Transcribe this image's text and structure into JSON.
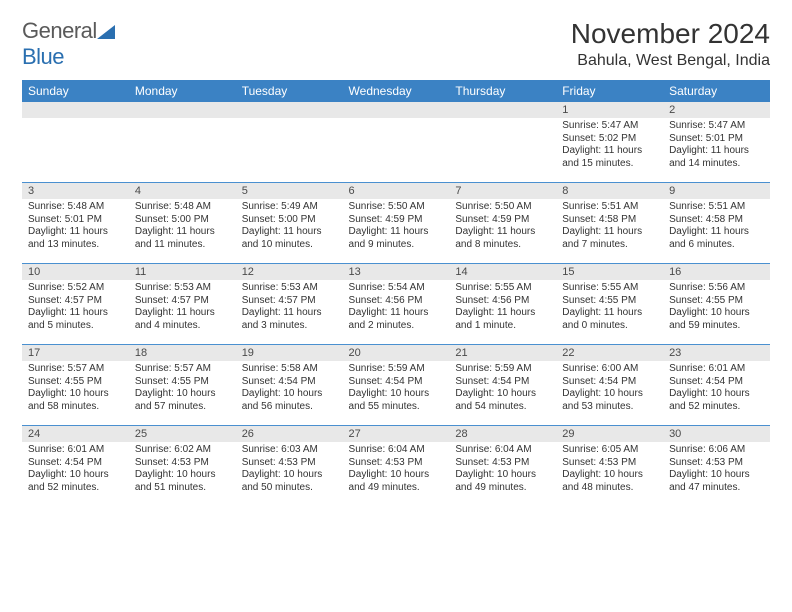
{
  "logo": {
    "word1": "General",
    "word2": "Blue"
  },
  "title": "November 2024",
  "location": "Bahula, West Bengal, India",
  "colors": {
    "header_bg": "#3b82c4",
    "header_text": "#ffffff",
    "divider": "#4a90d0",
    "daynum_bg": "#e8e8e8",
    "logo_gray": "#5a5a5a",
    "logo_blue": "#2a6fb0"
  },
  "weekdays": [
    "Sunday",
    "Monday",
    "Tuesday",
    "Wednesday",
    "Thursday",
    "Friday",
    "Saturday"
  ],
  "weeks": [
    [
      null,
      null,
      null,
      null,
      null,
      {
        "n": "1",
        "sr": "Sunrise: 5:47 AM",
        "ss": "Sunset: 5:02 PM",
        "d1": "Daylight: 11 hours",
        "d2": "and 15 minutes."
      },
      {
        "n": "2",
        "sr": "Sunrise: 5:47 AM",
        "ss": "Sunset: 5:01 PM",
        "d1": "Daylight: 11 hours",
        "d2": "and 14 minutes."
      }
    ],
    [
      {
        "n": "3",
        "sr": "Sunrise: 5:48 AM",
        "ss": "Sunset: 5:01 PM",
        "d1": "Daylight: 11 hours",
        "d2": "and 13 minutes."
      },
      {
        "n": "4",
        "sr": "Sunrise: 5:48 AM",
        "ss": "Sunset: 5:00 PM",
        "d1": "Daylight: 11 hours",
        "d2": "and 11 minutes."
      },
      {
        "n": "5",
        "sr": "Sunrise: 5:49 AM",
        "ss": "Sunset: 5:00 PM",
        "d1": "Daylight: 11 hours",
        "d2": "and 10 minutes."
      },
      {
        "n": "6",
        "sr": "Sunrise: 5:50 AM",
        "ss": "Sunset: 4:59 PM",
        "d1": "Daylight: 11 hours",
        "d2": "and 9 minutes."
      },
      {
        "n": "7",
        "sr": "Sunrise: 5:50 AM",
        "ss": "Sunset: 4:59 PM",
        "d1": "Daylight: 11 hours",
        "d2": "and 8 minutes."
      },
      {
        "n": "8",
        "sr": "Sunrise: 5:51 AM",
        "ss": "Sunset: 4:58 PM",
        "d1": "Daylight: 11 hours",
        "d2": "and 7 minutes."
      },
      {
        "n": "9",
        "sr": "Sunrise: 5:51 AM",
        "ss": "Sunset: 4:58 PM",
        "d1": "Daylight: 11 hours",
        "d2": "and 6 minutes."
      }
    ],
    [
      {
        "n": "10",
        "sr": "Sunrise: 5:52 AM",
        "ss": "Sunset: 4:57 PM",
        "d1": "Daylight: 11 hours",
        "d2": "and 5 minutes."
      },
      {
        "n": "11",
        "sr": "Sunrise: 5:53 AM",
        "ss": "Sunset: 4:57 PM",
        "d1": "Daylight: 11 hours",
        "d2": "and 4 minutes."
      },
      {
        "n": "12",
        "sr": "Sunrise: 5:53 AM",
        "ss": "Sunset: 4:57 PM",
        "d1": "Daylight: 11 hours",
        "d2": "and 3 minutes."
      },
      {
        "n": "13",
        "sr": "Sunrise: 5:54 AM",
        "ss": "Sunset: 4:56 PM",
        "d1": "Daylight: 11 hours",
        "d2": "and 2 minutes."
      },
      {
        "n": "14",
        "sr": "Sunrise: 5:55 AM",
        "ss": "Sunset: 4:56 PM",
        "d1": "Daylight: 11 hours",
        "d2": "and 1 minute."
      },
      {
        "n": "15",
        "sr": "Sunrise: 5:55 AM",
        "ss": "Sunset: 4:55 PM",
        "d1": "Daylight: 11 hours",
        "d2": "and 0 minutes."
      },
      {
        "n": "16",
        "sr": "Sunrise: 5:56 AM",
        "ss": "Sunset: 4:55 PM",
        "d1": "Daylight: 10 hours",
        "d2": "and 59 minutes."
      }
    ],
    [
      {
        "n": "17",
        "sr": "Sunrise: 5:57 AM",
        "ss": "Sunset: 4:55 PM",
        "d1": "Daylight: 10 hours",
        "d2": "and 58 minutes."
      },
      {
        "n": "18",
        "sr": "Sunrise: 5:57 AM",
        "ss": "Sunset: 4:55 PM",
        "d1": "Daylight: 10 hours",
        "d2": "and 57 minutes."
      },
      {
        "n": "19",
        "sr": "Sunrise: 5:58 AM",
        "ss": "Sunset: 4:54 PM",
        "d1": "Daylight: 10 hours",
        "d2": "and 56 minutes."
      },
      {
        "n": "20",
        "sr": "Sunrise: 5:59 AM",
        "ss": "Sunset: 4:54 PM",
        "d1": "Daylight: 10 hours",
        "d2": "and 55 minutes."
      },
      {
        "n": "21",
        "sr": "Sunrise: 5:59 AM",
        "ss": "Sunset: 4:54 PM",
        "d1": "Daylight: 10 hours",
        "d2": "and 54 minutes."
      },
      {
        "n": "22",
        "sr": "Sunrise: 6:00 AM",
        "ss": "Sunset: 4:54 PM",
        "d1": "Daylight: 10 hours",
        "d2": "and 53 minutes."
      },
      {
        "n": "23",
        "sr": "Sunrise: 6:01 AM",
        "ss": "Sunset: 4:54 PM",
        "d1": "Daylight: 10 hours",
        "d2": "and 52 minutes."
      }
    ],
    [
      {
        "n": "24",
        "sr": "Sunrise: 6:01 AM",
        "ss": "Sunset: 4:54 PM",
        "d1": "Daylight: 10 hours",
        "d2": "and 52 minutes."
      },
      {
        "n": "25",
        "sr": "Sunrise: 6:02 AM",
        "ss": "Sunset: 4:53 PM",
        "d1": "Daylight: 10 hours",
        "d2": "and 51 minutes."
      },
      {
        "n": "26",
        "sr": "Sunrise: 6:03 AM",
        "ss": "Sunset: 4:53 PM",
        "d1": "Daylight: 10 hours",
        "d2": "and 50 minutes."
      },
      {
        "n": "27",
        "sr": "Sunrise: 6:04 AM",
        "ss": "Sunset: 4:53 PM",
        "d1": "Daylight: 10 hours",
        "d2": "and 49 minutes."
      },
      {
        "n": "28",
        "sr": "Sunrise: 6:04 AM",
        "ss": "Sunset: 4:53 PM",
        "d1": "Daylight: 10 hours",
        "d2": "and 49 minutes."
      },
      {
        "n": "29",
        "sr": "Sunrise: 6:05 AM",
        "ss": "Sunset: 4:53 PM",
        "d1": "Daylight: 10 hours",
        "d2": "and 48 minutes."
      },
      {
        "n": "30",
        "sr": "Sunrise: 6:06 AM",
        "ss": "Sunset: 4:53 PM",
        "d1": "Daylight: 10 hours",
        "d2": "and 47 minutes."
      }
    ]
  ]
}
